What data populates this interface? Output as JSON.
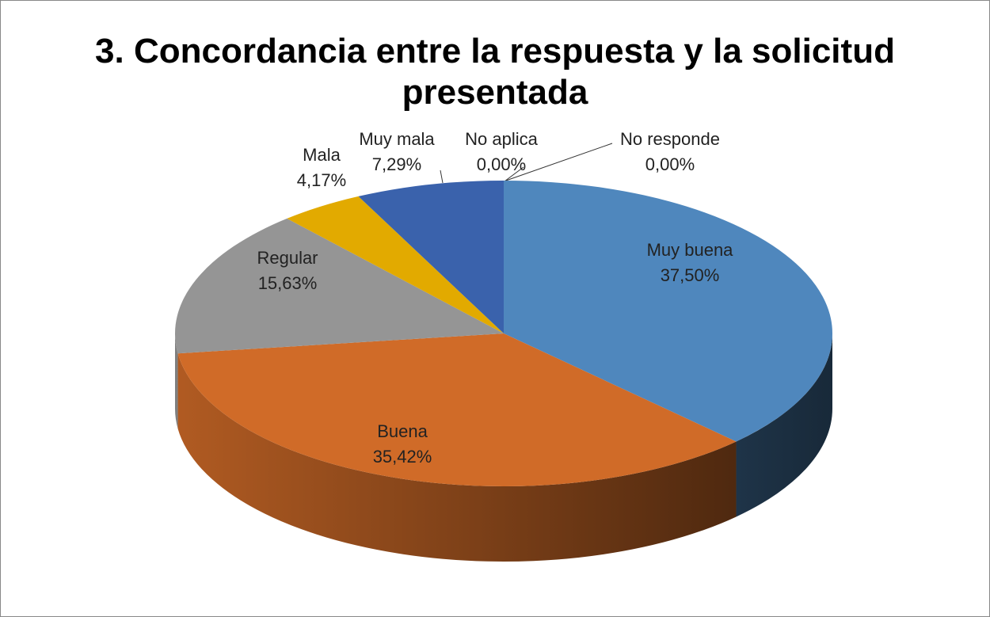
{
  "chart_data": {
    "type": "pie",
    "title": "3. Concordancia entre la respuesta y la solicitud presentada",
    "categories": [
      "Muy buena",
      "Buena",
      "Regular",
      "Mala",
      "Muy mala",
      "No aplica",
      "No responde"
    ],
    "values": [
      37.5,
      35.42,
      15.63,
      4.17,
      7.29,
      0,
      0
    ],
    "value_labels": [
      "37,50%",
      "35,42%",
      "15,63%",
      "4,17%",
      "7,29%",
      "0,00%",
      "0,00%"
    ],
    "colors": [
      "#4f87bd",
      "#d06b28",
      "#959595",
      "#e2aa00",
      "#3a62ac",
      "#6f9a3c",
      "#7c5a9e"
    ]
  }
}
